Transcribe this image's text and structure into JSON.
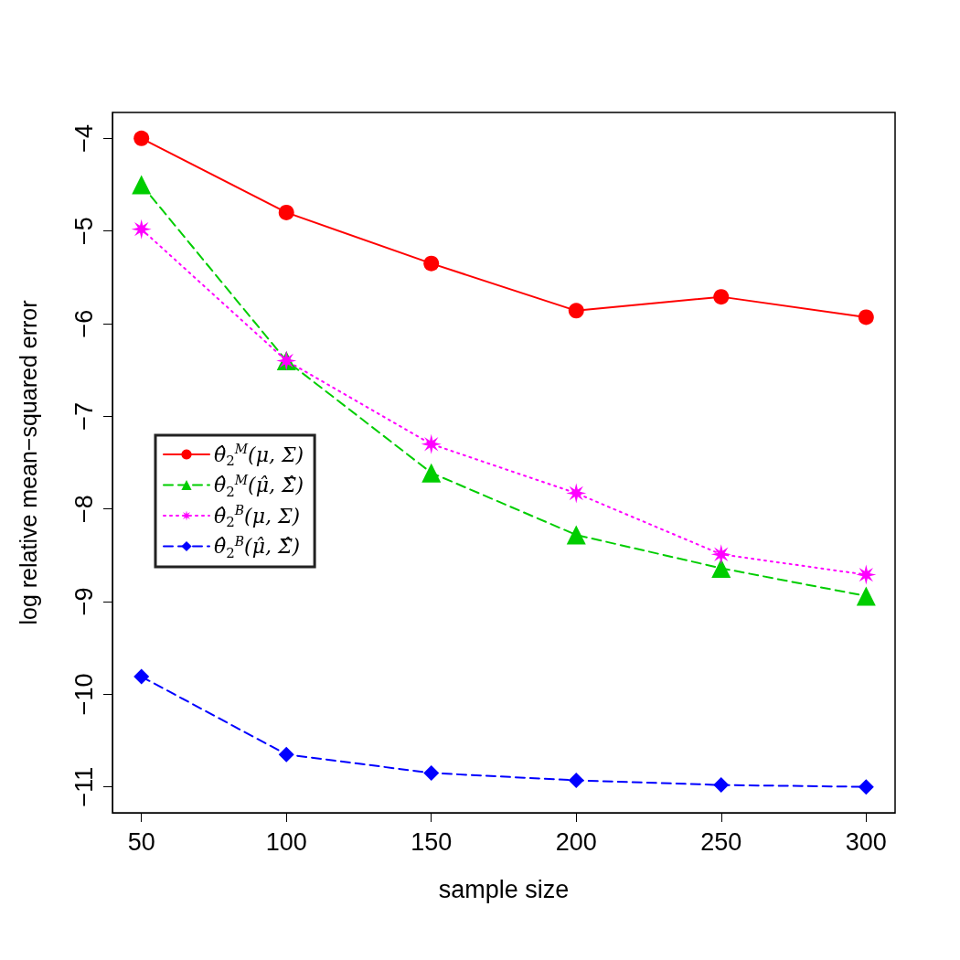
{
  "chart_data": {
    "type": "line",
    "xlabel": "sample size",
    "ylabel": "log relative mean−squared error",
    "x": [
      50,
      100,
      150,
      200,
      250,
      300
    ],
    "xlim": [
      40,
      310
    ],
    "xticks": [
      50,
      100,
      150,
      200,
      250,
      300
    ],
    "ylim": [
      -11.28,
      -3.72
    ],
    "yticks": [
      -4,
      -5,
      -6,
      -7,
      -8,
      -9,
      -10,
      -11
    ],
    "grid": false,
    "legend": "left",
    "series": [
      {
        "name": "θ̂$_{2}$$^{M}$(μ, Σ)",
        "color": "#ff0000",
        "marker": "circle",
        "line_style": "solid",
        "values": [
          -4.0,
          -4.8,
          -5.35,
          -5.86,
          -5.71,
          -5.93
        ]
      },
      {
        "name": "θ̂$_{2}$$^{M}$(μ̂, Σ̂)",
        "color": "#00cd00",
        "marker": "triangle",
        "line_style": "dashed",
        "values": [
          -4.5,
          -6.4,
          -7.61,
          -8.28,
          -8.64,
          -8.94
        ]
      },
      {
        "name": "θ̂$_{2}$$^{B}$(μ, Σ)",
        "color": "#ff00ff",
        "marker": "star",
        "line_style": "dotted",
        "values": [
          -4.98,
          -6.4,
          -7.3,
          -7.83,
          -8.49,
          -8.71
        ]
      },
      {
        "name": "θ̂$_{2}$$^{B}$(μ̂, Σ̂)",
        "color": "#0000ff",
        "marker": "diamond",
        "line_style": "dashed",
        "values": [
          -9.81,
          -10.65,
          -10.85,
          -10.93,
          -10.98,
          -11.0
        ]
      }
    ]
  }
}
